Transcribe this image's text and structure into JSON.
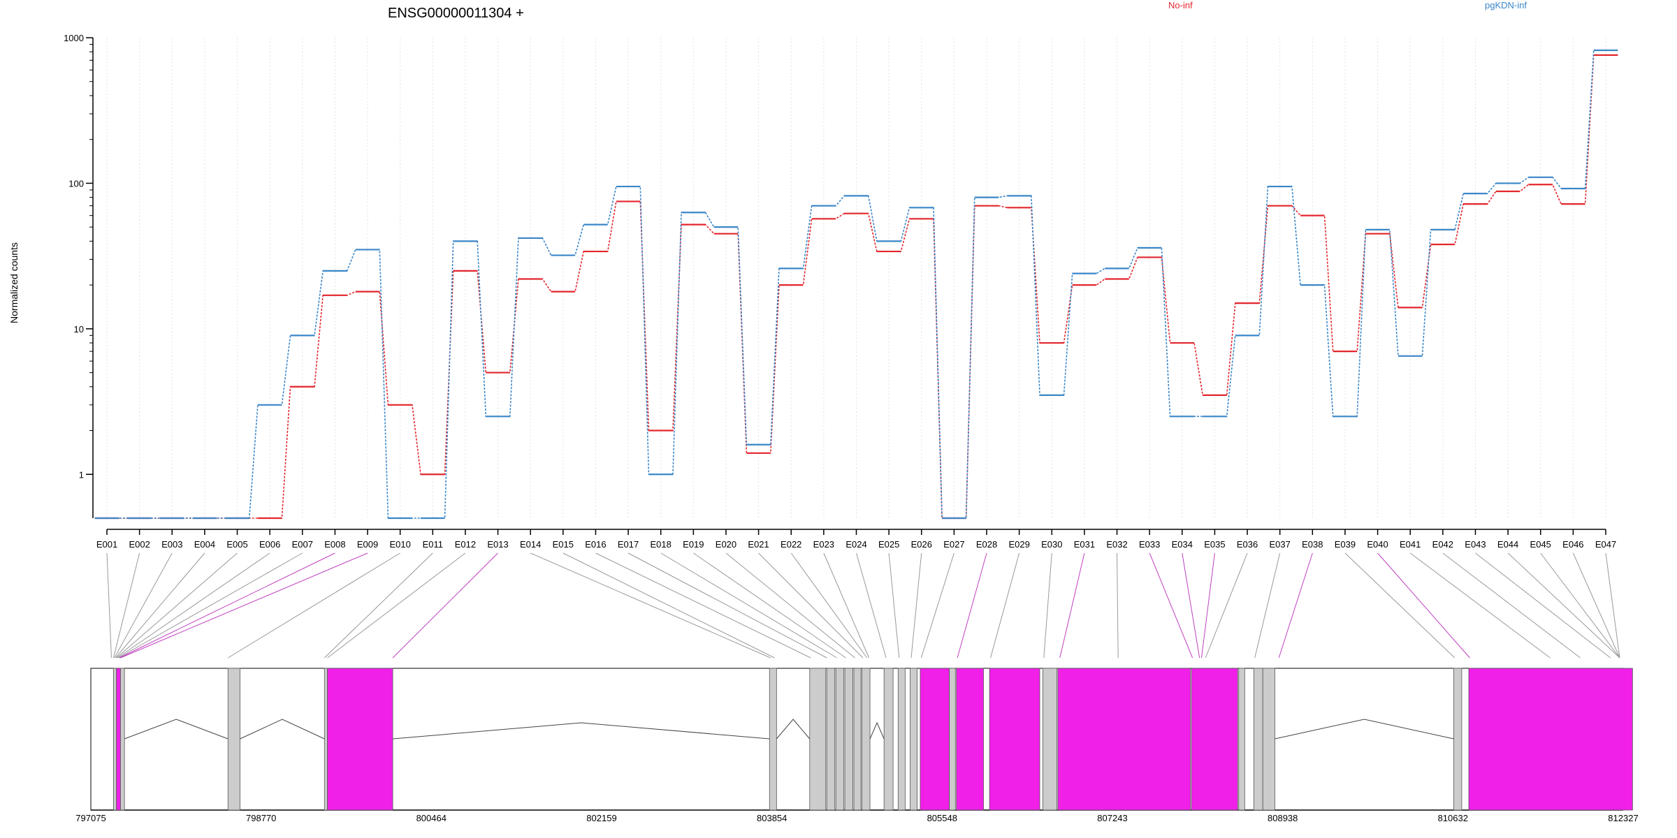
{
  "chart_data": {
    "type": "line",
    "title": "ENSG00000011304 +",
    "xlabel": "",
    "ylabel": "Normalized counts",
    "y_scale": "log",
    "ylim": [
      0.5,
      1000
    ],
    "y_ticks": [
      "1",
      "10",
      "100",
      "1000"
    ],
    "grid": "vertical dotted lines at each exon",
    "legend_position": "top",
    "colors": {
      "No-inf": "#e3262d",
      "pgKDN-inf": "#3a86c8",
      "counted_exon": "#f020e8",
      "other_exon": "#cccccc",
      "intron": "#444444",
      "link": "#999999"
    },
    "categories": [
      "E001",
      "E002",
      "E003",
      "E004",
      "E005",
      "E006",
      "E007",
      "E008",
      "E009",
      "E010",
      "E011",
      "E012",
      "E013",
      "E014",
      "E015",
      "E016",
      "E017",
      "E018",
      "E019",
      "E020",
      "E021",
      "E022",
      "E023",
      "E024",
      "E025",
      "E026",
      "E027",
      "E028",
      "E029",
      "E030",
      "E031",
      "E032",
      "E033",
      "E034",
      "E035",
      "E036",
      "E037",
      "E038",
      "E039",
      "E040",
      "E041",
      "E042",
      "E043",
      "E044",
      "E045",
      "E046",
      "E047"
    ],
    "series": [
      {
        "name": "No-inf",
        "values": [
          0.5,
          0.5,
          0.5,
          0.5,
          0.5,
          0.5,
          4,
          17,
          18,
          3,
          1,
          25,
          5,
          22,
          18,
          34,
          75,
          2,
          52,
          45,
          1.4,
          20,
          57,
          62,
          34,
          57,
          0.5,
          70,
          68,
          8,
          20,
          22,
          31,
          8,
          3.5,
          15,
          70,
          60,
          7,
          45,
          14,
          38,
          72,
          88,
          98,
          72,
          760
        ]
      },
      {
        "name": "pgKDN-inf",
        "values": [
          0.5,
          0.5,
          0.5,
          0.5,
          0.5,
          3,
          9,
          25,
          35,
          0.5,
          0.5,
          40,
          2.5,
          42,
          32,
          52,
          95,
          1,
          63,
          50,
          1.6,
          26,
          70,
          82,
          40,
          68,
          0.5,
          80,
          82,
          3.5,
          24,
          26,
          36,
          2.5,
          2.5,
          9,
          95,
          20,
          2.5,
          48,
          6.5,
          48,
          85,
          100,
          110,
          92,
          820
        ]
      }
    ],
    "x_positions": [
      "797075",
      "798770",
      "800464",
      "802159",
      "803854",
      "805548",
      "807243",
      "808938",
      "810632",
      "812327"
    ]
  }
}
